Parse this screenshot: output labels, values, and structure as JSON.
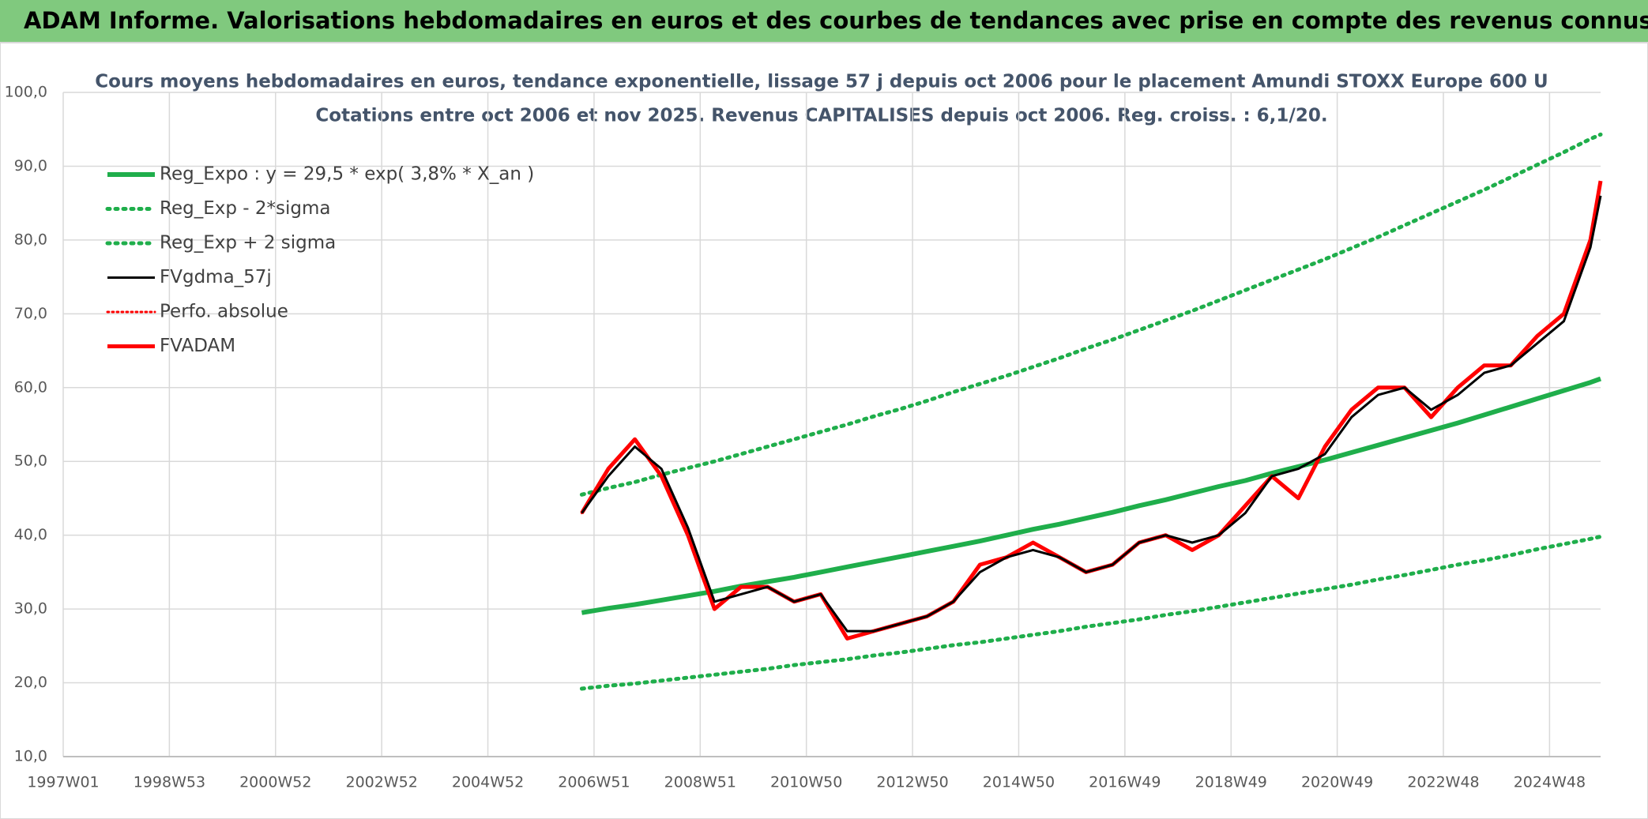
{
  "header": {
    "title": "ADAM Informe. Valorisations hebdomadaires en euros et des courbes de tendances avec prise en compte des revenus connus capitalisés"
  },
  "chart_data": {
    "type": "line",
    "title": "Cours moyens hebdomadaires en euros, tendance exponentielle, lissage 57 j depuis oct 2006 pour le placement Amundi STOXX Europe 600 U",
    "subtitle": "Cotations entre oct 2006 et nov 2025. Revenus CAPITALISES depuis oct 2006. Reg. croiss. : 6,1/20.",
    "xlim": [
      0,
      1506
    ],
    "xticks": [
      {
        "value": 0,
        "label": "1997W01"
      },
      {
        "value": 104,
        "label": "1998W53"
      },
      {
        "value": 208,
        "label": "2000W52"
      },
      {
        "value": 312,
        "label": "2002W52"
      },
      {
        "value": 416,
        "label": "2004W52"
      },
      {
        "value": 520,
        "label": "2006W51"
      },
      {
        "value": 624,
        "label": "2008W51"
      },
      {
        "value": 728,
        "label": "2010W50"
      },
      {
        "value": 832,
        "label": "2012W50"
      },
      {
        "value": 936,
        "label": "2014W50"
      },
      {
        "value": 1040,
        "label": "2016W49"
      },
      {
        "value": 1144,
        "label": "2018W49"
      },
      {
        "value": 1248,
        "label": "2020W49"
      },
      {
        "value": 1352,
        "label": "2022W48"
      },
      {
        "value": 1456,
        "label": "2024W48"
      }
    ],
    "ylim": [
      10,
      100
    ],
    "yticks": [
      {
        "value": 10,
        "label": "10,0"
      },
      {
        "value": 20,
        "label": "20,0"
      },
      {
        "value": 30,
        "label": "30,0"
      },
      {
        "value": 40,
        "label": "40,0"
      },
      {
        "value": 50,
        "label": "50,0"
      },
      {
        "value": 60,
        "label": "60,0"
      },
      {
        "value": 70,
        "label": "70,0"
      },
      {
        "value": 80,
        "label": "80,0"
      },
      {
        "value": 90,
        "label": "90,0"
      },
      {
        "value": 100,
        "label": "100,0"
      }
    ],
    "grid": true,
    "legend": "top-left",
    "x": [
      508,
      534,
      560,
      586,
      612,
      638,
      664,
      690,
      716,
      742,
      768,
      794,
      820,
      846,
      872,
      898,
      924,
      950,
      976,
      1002,
      1028,
      1054,
      1080,
      1106,
      1132,
      1158,
      1184,
      1210,
      1236,
      1262,
      1288,
      1314,
      1340,
      1366,
      1392,
      1418,
      1444,
      1470,
      1496,
      1506
    ],
    "series": [
      {
        "name": "Reg_Expo : y = 29,5 * exp( 3,8% *  X_an )",
        "color": "#1fae4b",
        "dash": "solid",
        "width": 6,
        "values": [
          29.5,
          30.1,
          30.6,
          31.2,
          31.8,
          32.4,
          33.1,
          33.7,
          34.3,
          35.0,
          35.7,
          36.4,
          37.1,
          37.8,
          38.5,
          39.2,
          40.0,
          40.8,
          41.5,
          42.3,
          43.1,
          44.0,
          44.8,
          45.7,
          46.6,
          47.4,
          48.4,
          49.3,
          50.2,
          51.2,
          52.2,
          53.2,
          54.2,
          55.2,
          56.3,
          57.4,
          58.5,
          59.6,
          60.7,
          61.2
        ]
      },
      {
        "name": "Reg_Exp - 2*sigma",
        "color": "#1fae4b",
        "dash": "dotted",
        "width": 5,
        "values": [
          19.2,
          19.6,
          19.9,
          20.3,
          20.7,
          21.1,
          21.5,
          21.9,
          22.4,
          22.8,
          23.2,
          23.7,
          24.1,
          24.6,
          25.1,
          25.5,
          26.0,
          26.5,
          27.0,
          27.6,
          28.1,
          28.6,
          29.2,
          29.7,
          30.3,
          30.9,
          31.5,
          32.1,
          32.7,
          33.3,
          34.0,
          34.6,
          35.3,
          36.0,
          36.6,
          37.3,
          38.1,
          38.8,
          39.5,
          39.8
        ]
      },
      {
        "name": "Reg_Exp + 2 sigma",
        "color": "#1fae4b",
        "dash": "dotted",
        "width": 5,
        "values": [
          45.5,
          46.4,
          47.2,
          48.2,
          49.1,
          50.0,
          51.0,
          52.0,
          53.0,
          54.0,
          55.0,
          56.1,
          57.1,
          58.2,
          59.4,
          60.5,
          61.6,
          62.8,
          64.0,
          65.3,
          66.5,
          67.8,
          69.1,
          70.4,
          71.8,
          73.2,
          74.6,
          76.0,
          77.4,
          78.9,
          80.4,
          82.0,
          83.6,
          85.2,
          86.8,
          88.5,
          90.2,
          91.9,
          93.7,
          94.3
        ]
      },
      {
        "name": "FVgdma_57j",
        "color": "#000000",
        "dash": "solid",
        "width": 3,
        "values": [
          43,
          48,
          52,
          49,
          41,
          31,
          32,
          33,
          31,
          32,
          27,
          27,
          28,
          29,
          31,
          35,
          37,
          38,
          37,
          35,
          36,
          39,
          40,
          39,
          40,
          43,
          48,
          49,
          51,
          56,
          59,
          60,
          57,
          59,
          62,
          63,
          66,
          69,
          79,
          86
        ]
      },
      {
        "name": "Perfo. absolue",
        "color": "#ff0000",
        "dash": "dotted",
        "width": 3,
        "values": [
          43,
          49,
          53,
          48,
          40,
          30,
          33,
          33,
          31,
          32,
          26,
          27,
          28,
          29,
          31,
          36,
          37,
          39,
          37,
          35,
          36,
          39,
          40,
          38,
          40,
          44,
          48,
          45,
          52,
          57,
          60,
          60,
          56,
          60,
          63,
          63,
          67,
          70,
          80,
          88
        ]
      },
      {
        "name": "FVADAM",
        "color": "#ff0000",
        "dash": "solid",
        "width": 5,
        "values": [
          43,
          49,
          53,
          48,
          40,
          30,
          33,
          33,
          31,
          32,
          26,
          27,
          28,
          29,
          31,
          36,
          37,
          39,
          37,
          35,
          36,
          39,
          40,
          38,
          40,
          44,
          48,
          45,
          52,
          57,
          60,
          60,
          56,
          60,
          63,
          63,
          67,
          70,
          80,
          88
        ]
      }
    ]
  }
}
